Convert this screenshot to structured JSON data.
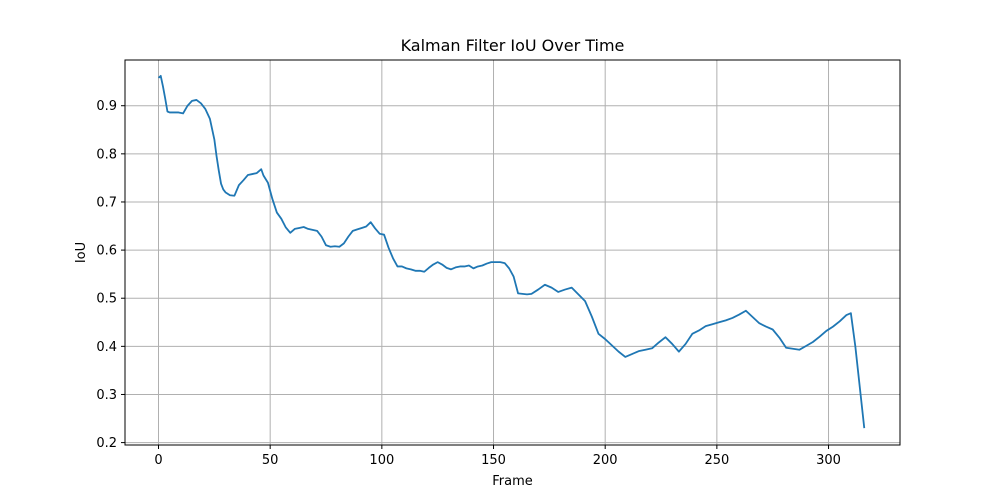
{
  "chart_data": {
    "type": "line",
    "title": "Kalman Filter IoU Over Time",
    "xlabel": "Frame",
    "ylabel": "IoU",
    "xlim": [
      -15,
      332
    ],
    "ylim": [
      0.195,
      0.995
    ],
    "xticks": [
      0,
      50,
      100,
      150,
      200,
      250,
      300
    ],
    "yticks": [
      0.2,
      0.3,
      0.4,
      0.5,
      0.6,
      0.7,
      0.8,
      0.9
    ],
    "grid": true,
    "series_color": "#1f77b4",
    "series": [
      {
        "x": [
          0,
          1,
          2,
          3,
          4,
          5,
          7,
          9,
          11,
          13,
          15,
          17,
          19,
          21,
          23,
          25,
          26,
          27,
          28,
          29,
          30,
          32,
          34,
          36,
          38,
          40,
          42,
          44,
          46,
          47,
          49,
          51,
          53,
          55,
          57,
          59,
          61,
          63,
          65,
          67,
          69,
          71,
          73,
          75,
          77,
          79,
          81,
          83,
          85,
          87,
          89,
          91,
          93,
          95,
          97,
          99,
          101,
          103,
          105,
          107,
          109,
          111,
          113,
          115,
          117,
          119,
          121,
          123,
          125,
          127,
          129,
          131,
          133,
          135,
          137,
          139,
          141,
          143,
          145,
          147,
          149,
          151,
          153,
          155,
          157,
          159,
          161,
          163,
          165,
          167,
          170,
          173,
          176,
          179,
          182,
          185,
          188,
          191,
          194,
          197,
          200,
          203,
          206,
          209,
          212,
          215,
          218,
          221,
          224,
          227,
          230,
          233,
          236,
          239,
          242,
          245,
          248,
          251,
          254,
          257,
          260,
          263,
          266,
          269,
          272,
          275,
          278,
          281,
          284,
          287,
          290,
          293,
          296,
          299,
          302,
          305,
          308,
          310,
          312,
          314,
          316
        ],
        "values": [
          0.958,
          0.962,
          0.94,
          0.915,
          0.888,
          0.886,
          0.886,
          0.886,
          0.884,
          0.9,
          0.91,
          0.912,
          0.905,
          0.893,
          0.873,
          0.83,
          0.795,
          0.765,
          0.738,
          0.726,
          0.72,
          0.714,
          0.713,
          0.735,
          0.745,
          0.756,
          0.758,
          0.76,
          0.768,
          0.755,
          0.74,
          0.706,
          0.678,
          0.665,
          0.647,
          0.636,
          0.644,
          0.646,
          0.648,
          0.644,
          0.642,
          0.64,
          0.628,
          0.61,
          0.607,
          0.608,
          0.607,
          0.614,
          0.628,
          0.64,
          0.643,
          0.646,
          0.649,
          0.658,
          0.645,
          0.634,
          0.632,
          0.605,
          0.583,
          0.566,
          0.566,
          0.562,
          0.56,
          0.557,
          0.557,
          0.555,
          0.563,
          0.57,
          0.575,
          0.57,
          0.563,
          0.56,
          0.564,
          0.566,
          0.566,
          0.568,
          0.562,
          0.566,
          0.568,
          0.572,
          0.575,
          0.575,
          0.575,
          0.573,
          0.562,
          0.545,
          0.51,
          0.509,
          0.508,
          0.509,
          0.518,
          0.528,
          0.522,
          0.513,
          0.518,
          0.522,
          0.508,
          0.494,
          0.462,
          0.426,
          0.415,
          0.402,
          0.389,
          0.378,
          0.384,
          0.39,
          0.393,
          0.396,
          0.408,
          0.419,
          0.405,
          0.389,
          0.405,
          0.426,
          0.433,
          0.442,
          0.446,
          0.45,
          0.454,
          0.459,
          0.466,
          0.474,
          0.461,
          0.448,
          0.441,
          0.435,
          0.418,
          0.397,
          0.395,
          0.393,
          0.401,
          0.409,
          0.42,
          0.432,
          0.441,
          0.452,
          0.465,
          0.469,
          0.4,
          0.315,
          0.23
        ]
      }
    ]
  }
}
